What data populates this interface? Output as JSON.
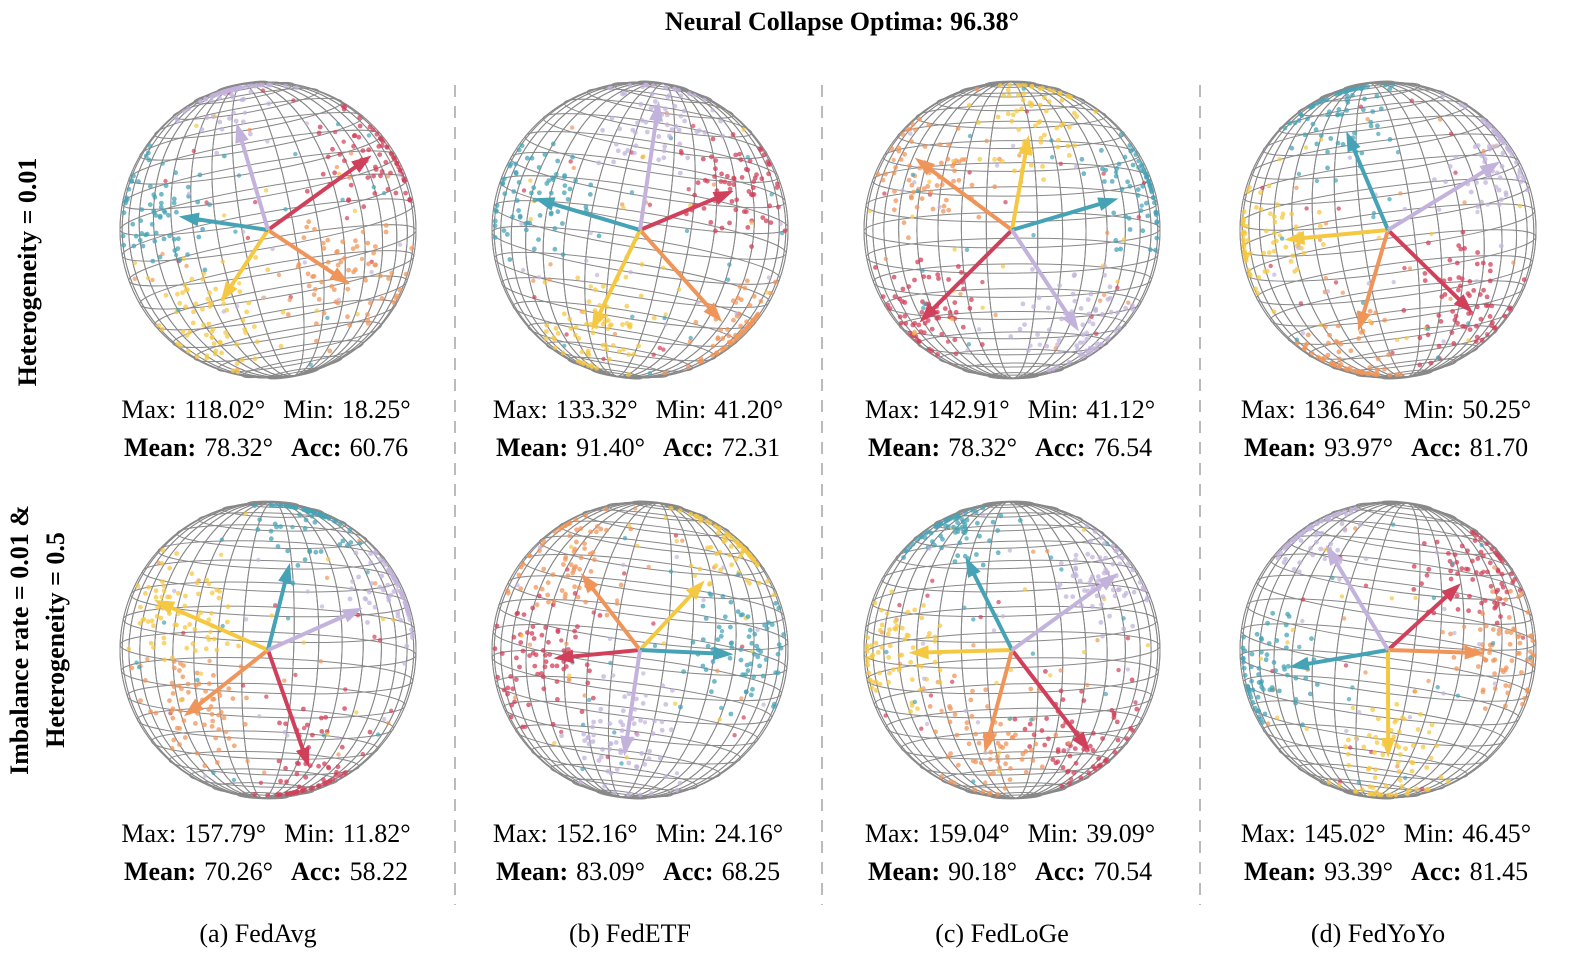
{
  "title": "Neural Collapse Optima: 96.38°",
  "rows": [
    {
      "label_lines": [
        "Heterogeneity = 0.01"
      ]
    },
    {
      "label_lines": [
        "Imbalance rate = 0.01 &",
        "Heterogeneity = 0.5"
      ]
    }
  ],
  "stat_labels": {
    "max": "Max:",
    "min": "Min:",
    "mean": "Mean:",
    "acc": "Acc:"
  },
  "columns": [
    {
      "caption": "(a) FedAvg",
      "panels": [
        {
          "max": "118.02°",
          "min": "18.25°",
          "mean": "78.32°",
          "acc": "60.76"
        },
        {
          "max": "157.79°",
          "min": "11.82°",
          "mean": "70.26°",
          "acc": "58.22"
        }
      ]
    },
    {
      "caption": "(b) FedETF",
      "panels": [
        {
          "max": "133.32°",
          "min": "41.20°",
          "mean": "91.40°",
          "acc": "72.31"
        },
        {
          "max": "152.16°",
          "min": "24.16°",
          "mean": "83.09°",
          "acc": "68.25"
        }
      ]
    },
    {
      "caption": "(c) FedLoGe",
      "panels": [
        {
          "max": "142.91°",
          "min": "41.12°",
          "mean": "78.32°",
          "acc": "76.54"
        },
        {
          "max": "159.04°",
          "min": "39.09°",
          "mean": "90.18°",
          "acc": "70.54"
        }
      ]
    },
    {
      "caption": "(d) FedYoYo",
      "panels": [
        {
          "max": "136.64°",
          "min": "50.25°",
          "mean": "93.97°",
          "acc": "81.70"
        },
        {
          "max": "145.02°",
          "min": "46.45°",
          "mean": "93.39°",
          "acc": "81.45"
        }
      ]
    }
  ]
}
